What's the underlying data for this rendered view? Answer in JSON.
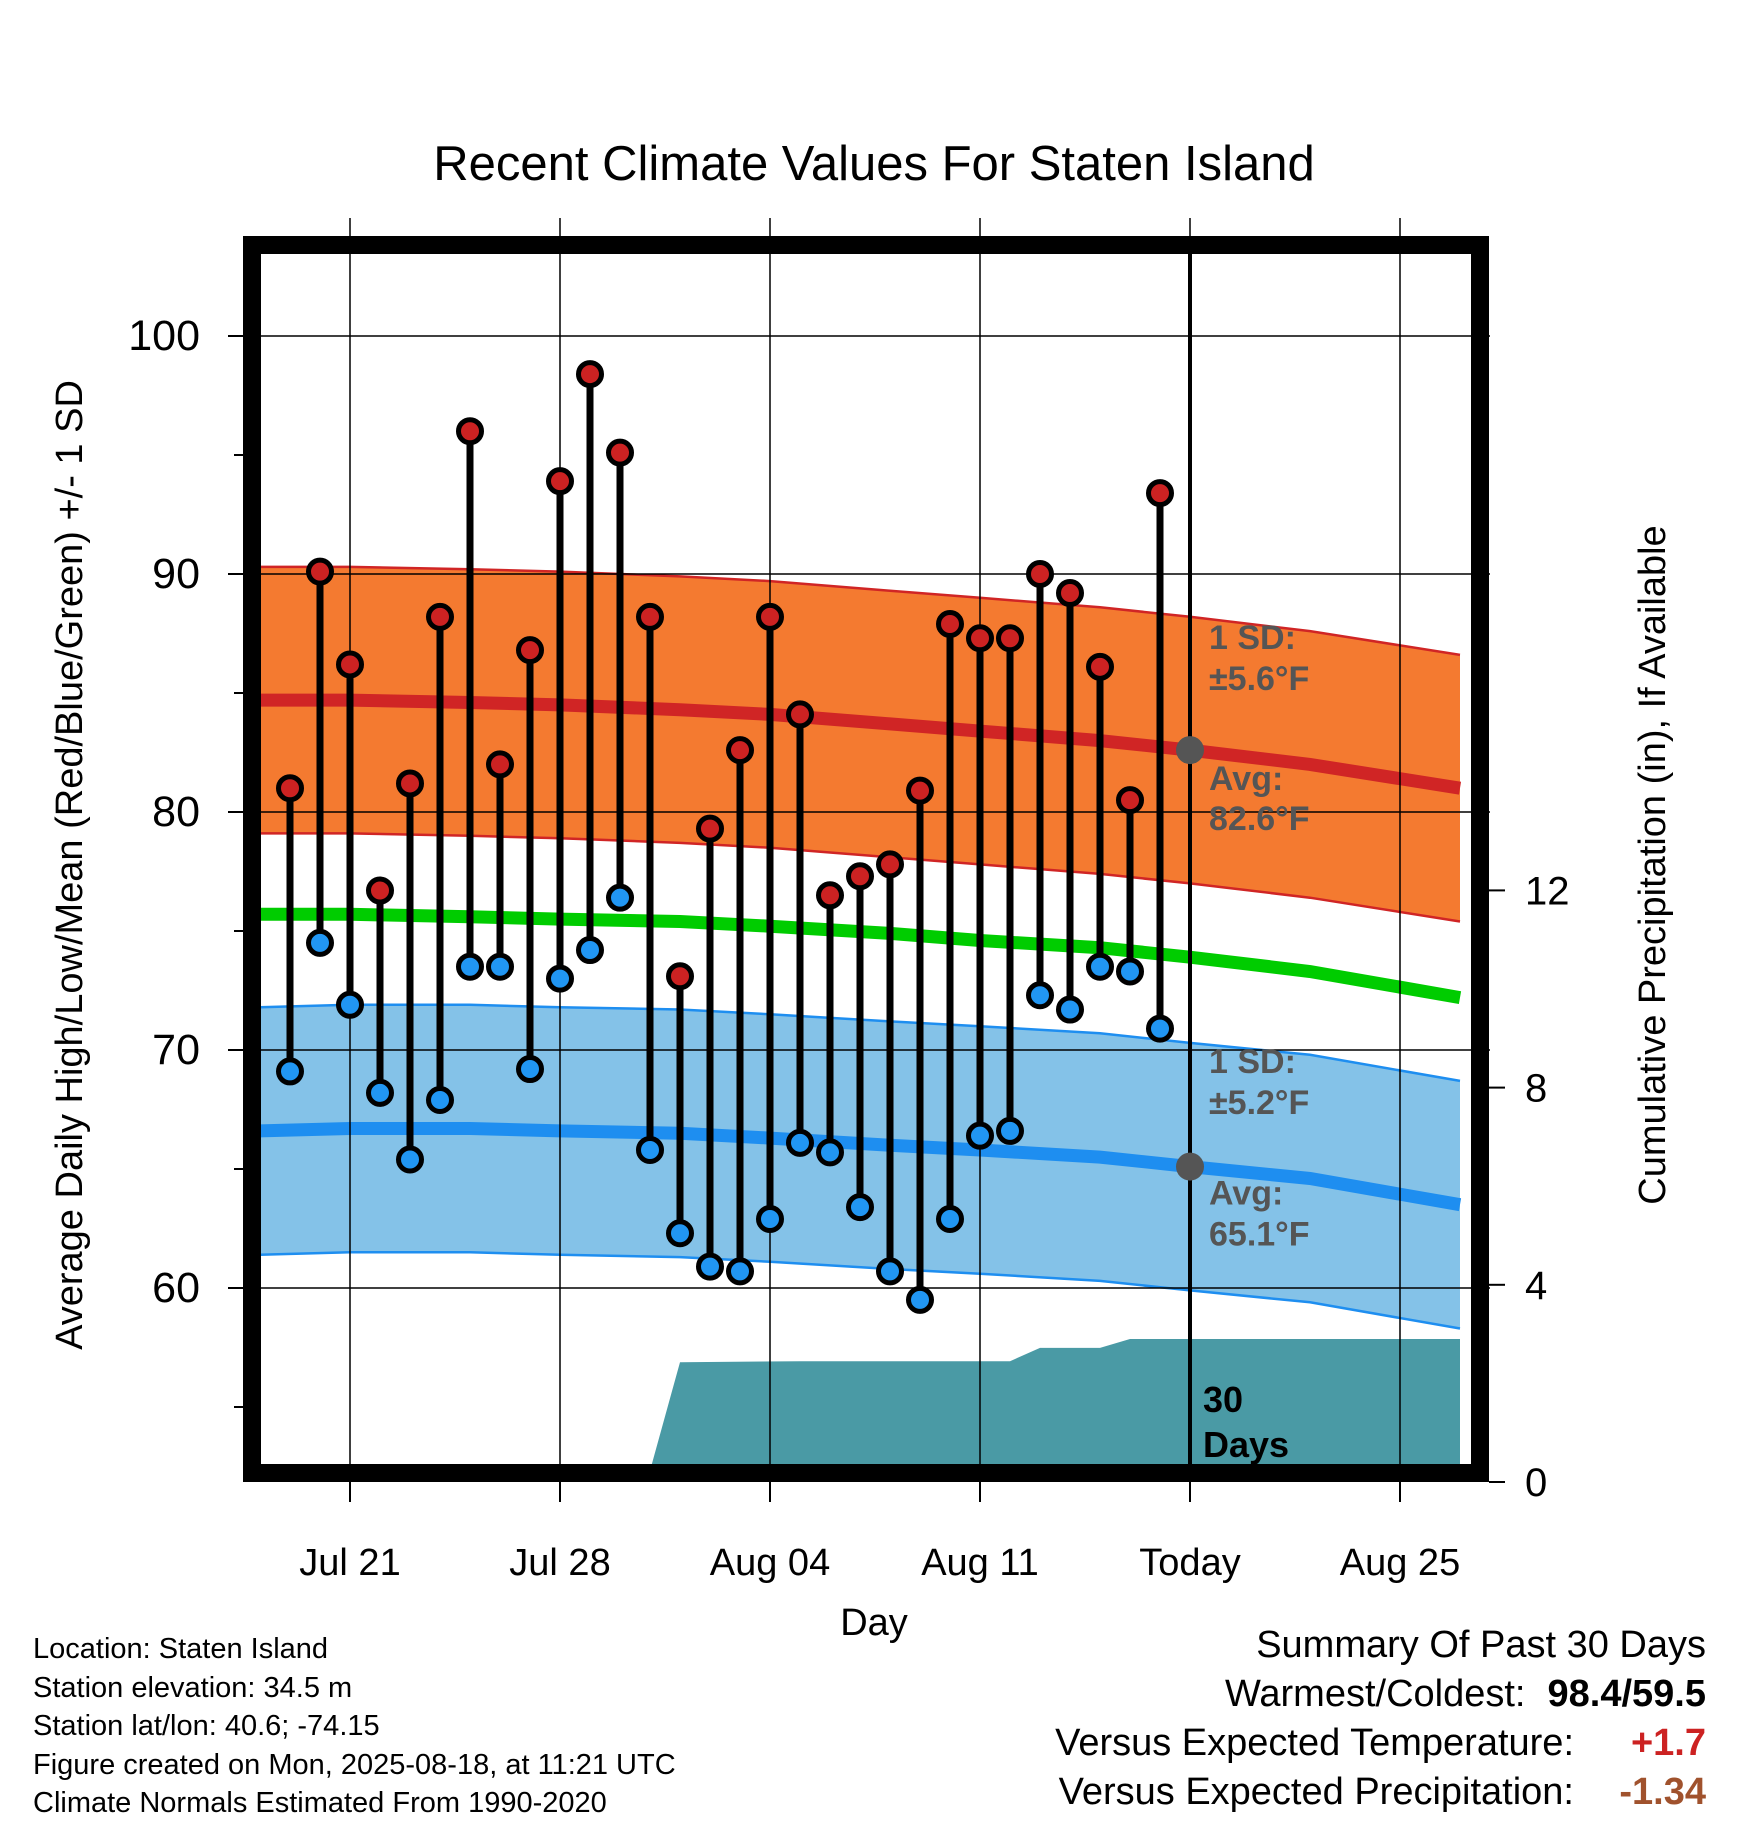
{
  "chart_data": {
    "type": "line",
    "title": "Recent Climate Values For Staten Island",
    "xlabel": "Day",
    "ylabel": "Average Daily High/Low/Mean (Red/Blue/Green) +/- 1 SD",
    "y2label": "Cumulative Precipitation (in), If Available",
    "x_start": "2025-07-18",
    "xlim_days": [
      -0.5,
      40.5
    ],
    "ylim": [
      51.8,
      104.0
    ],
    "y2lim": [
      0,
      20.8
    ],
    "yticks": [
      "60",
      "70",
      "80",
      "90",
      "100"
    ],
    "y2ticks": [
      "0",
      "4",
      "8",
      "12"
    ],
    "xticks": [
      {
        "date": "2025-07-21",
        "label": "Jul 21"
      },
      {
        "date": "2025-07-28",
        "label": "Jul 28"
      },
      {
        "date": "2025-08-04",
        "label": "Aug 04"
      },
      {
        "date": "2025-08-11",
        "label": "Aug 11"
      },
      {
        "date": "2025-08-18",
        "label": "Today"
      },
      {
        "date": "2025-08-25",
        "label": "Aug 25"
      }
    ],
    "today": "2025-08-18",
    "grid": true,
    "observed": {
      "dates": [
        "2025-07-19",
        "2025-07-20",
        "2025-07-21",
        "2025-07-22",
        "2025-07-23",
        "2025-07-24",
        "2025-07-25",
        "2025-07-26",
        "2025-07-27",
        "2025-07-28",
        "2025-07-29",
        "2025-07-30",
        "2025-07-31",
        "2025-08-01",
        "2025-08-02",
        "2025-08-03",
        "2025-08-04",
        "2025-08-05",
        "2025-08-06",
        "2025-08-07",
        "2025-08-08",
        "2025-08-09",
        "2025-08-10",
        "2025-08-11",
        "2025-08-12",
        "2025-08-13",
        "2025-08-14",
        "2025-08-15",
        "2025-08-16",
        "2025-08-17"
      ],
      "high": [
        81.0,
        90.1,
        86.2,
        76.7,
        81.2,
        88.2,
        96.0,
        82.0,
        86.8,
        93.9,
        98.4,
        95.1,
        88.2,
        73.1,
        79.3,
        82.6,
        88.2,
        84.1,
        76.5,
        77.3,
        77.8,
        80.9,
        87.9,
        87.3,
        87.3,
        90.0,
        89.2,
        86.1,
        80.5,
        93.4
      ],
      "low": [
        69.1,
        74.5,
        71.9,
        68.2,
        65.4,
        67.9,
        73.5,
        73.5,
        69.2,
        73.0,
        74.2,
        76.4,
        65.8,
        62.3,
        60.9,
        60.7,
        62.9,
        66.1,
        65.7,
        63.4,
        60.7,
        59.5,
        62.9,
        66.4,
        66.6,
        72.3,
        71.7,
        73.5,
        73.3,
        70.9
      ]
    },
    "normals": {
      "dates": [
        "2025-07-18",
        "2025-07-21",
        "2025-07-25",
        "2025-07-28",
        "2025-08-01",
        "2025-08-04",
        "2025-08-08",
        "2025-08-11",
        "2025-08-15",
        "2025-08-18",
        "2025-08-22",
        "2025-08-27"
      ],
      "high_avg": [
        84.7,
        84.7,
        84.6,
        84.5,
        84.3,
        84.1,
        83.7,
        83.4,
        83.0,
        82.6,
        82.0,
        81.0
      ],
      "low_avg": [
        66.6,
        66.7,
        66.7,
        66.6,
        66.5,
        66.3,
        66.0,
        65.8,
        65.5,
        65.1,
        64.6,
        63.5
      ],
      "mean_avg": [
        75.7,
        75.7,
        75.6,
        75.5,
        75.4,
        75.2,
        74.9,
        74.6,
        74.3,
        73.9,
        73.3,
        72.2
      ],
      "high_sd": 5.6,
      "low_sd": 5.2
    },
    "precip_cumulative": {
      "dates": [
        "2025-07-18",
        "2025-07-24",
        "2025-07-25",
        "2025-07-30",
        "2025-07-31",
        "2025-08-01",
        "2025-08-05",
        "2025-08-11",
        "2025-08-12",
        "2025-08-13",
        "2025-08-15",
        "2025-08-16",
        "2025-08-27"
      ],
      "values": [
        0.0,
        0.0,
        0.21,
        0.23,
        0.23,
        2.43,
        2.45,
        2.45,
        2.45,
        2.72,
        2.72,
        2.9,
        2.9
      ]
    },
    "annotations": {
      "high_sd_label": "1 SD:",
      "high_sd_value": "±5.6°F",
      "high_avg_label": "Avg:",
      "high_avg_value": "82.6°F",
      "low_sd_label": "1 SD:",
      "low_sd_value": "±5.2°F",
      "low_avg_label": "Avg:",
      "low_avg_value": "65.1°F",
      "days_label_1": "30",
      "days_label_2": "Days"
    },
    "colors": {
      "high_band": "#f47a30",
      "high_line": "#d02525",
      "low_band": "#84c2e8",
      "low_line": "#1e8ef0",
      "mean_line": "#00cc00",
      "precip_fill": "#4a9aa5",
      "high_marker": "#cc2222",
      "low_marker": "#2196f3",
      "today_marker": "#555555",
      "annotation_text": "#555555"
    }
  },
  "info": {
    "location": "Location: Staten Island",
    "elevation": "Station elevation: 34.5 m",
    "latlon": "Station lat/lon: 40.6; -74.15",
    "created": "Figure created on Mon, 2025-08-18, at 11:21 UTC",
    "normals": "Climate Normals Estimated From 1990-2020"
  },
  "summary": {
    "title": "Summary Of Past 30 Days",
    "warm_cold_label": "Warmest/Coldest:",
    "warm_value": "98.4",
    "cold_value": "59.5",
    "temp_label": "Versus Expected Temperature:",
    "temp_value": "+1.7",
    "temp_color": "#cc2222",
    "precip_label": "Versus Expected Precipitation:",
    "precip_value": "-1.34",
    "precip_color": "#a0522d"
  }
}
